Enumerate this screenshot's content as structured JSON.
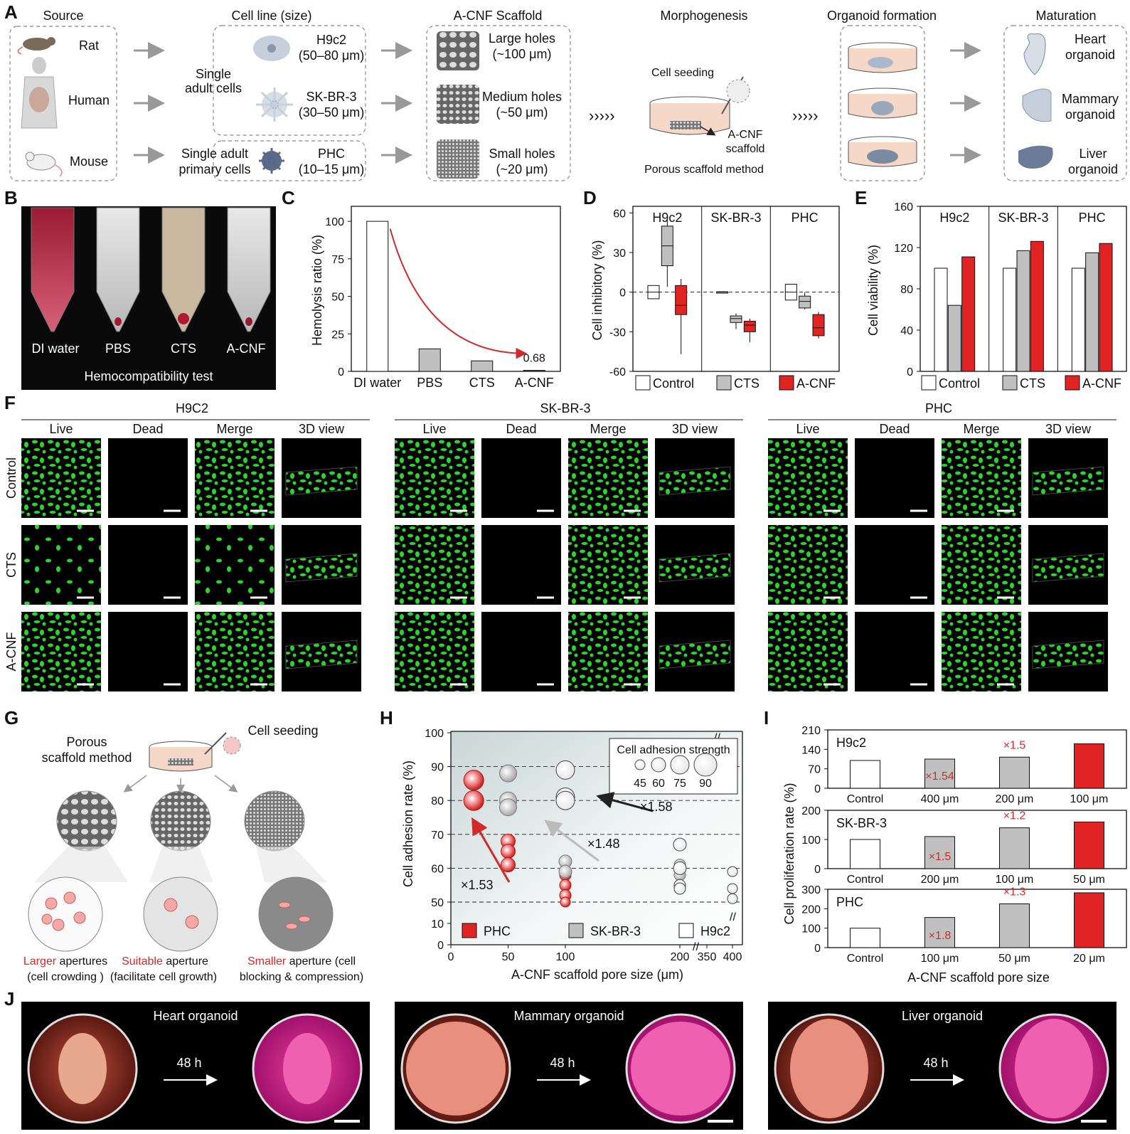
{
  "panel_letters": [
    "A",
    "B",
    "C",
    "D",
    "E",
    "F",
    "G",
    "H",
    "I",
    "J"
  ],
  "panelA": {
    "headers": [
      "Source",
      "Cell line (size)",
      "A-CNF Scaffold",
      "Morphogenesis",
      "Organoid formation",
      "Maturation"
    ],
    "sources": [
      "Rat",
      "Human",
      "Mouse"
    ],
    "single_adult_cells": "Single\nadult cells",
    "single_adult_primary": "Single adult\nprimary cells",
    "cells": [
      {
        "name": "H9c2",
        "size": "(50–80 μm)"
      },
      {
        "name": "SK-BR-3",
        "size": "(30–50 μm)"
      },
      {
        "name": "PHC",
        "size": "(10–15 μm)"
      }
    ],
    "scaffolds": [
      {
        "name": "Large holes",
        "size": "(~100 μm)"
      },
      {
        "name": "Medium holes",
        "size": "(~50 μm)"
      },
      {
        "name": "Small holes",
        "size": "(~20 μm)"
      }
    ],
    "cell_seeding": "Cell seeding",
    "acnf_scaffold": "A-CNF\nscaffold",
    "method": "Porous scaffold method",
    "organoids": [
      {
        "name": "Heart\norganoid"
      },
      {
        "name": "Mammary\norganoid"
      },
      {
        "name": "Liver\norganoid"
      }
    ]
  },
  "panelB": {
    "tubes": [
      "DI water",
      "PBS",
      "CTS",
      "A-CNF"
    ],
    "caption": "Hemocompatibility test"
  },
  "legend_groups": [
    "Control",
    "CTS",
    "A-CNF"
  ],
  "colors": {
    "control": "#ffffff",
    "cts": "#c0c0c0",
    "acnf": "#e02424",
    "arrow_red": "#d12a2a",
    "green": "#2bd62b"
  },
  "panelF": {
    "groups": [
      "H9C2",
      "SK-BR-3",
      "PHC"
    ],
    "columns": [
      "Live",
      "Dead",
      "Merge",
      "3D view"
    ],
    "rows": [
      "Control",
      "CTS",
      "A-CNF"
    ]
  },
  "panelG": {
    "method": "Porous\nscaffold method",
    "seeding": "Cell seeding",
    "captions": [
      {
        "red": "Larger",
        "rest": " apertures",
        "line2": "(cell crowding )"
      },
      {
        "red": "Suitable",
        "rest": " aperture",
        "line2": "(facilitate cell growth)"
      },
      {
        "red": "Smaller",
        "rest": " aperture (cell",
        "line2": "blocking & compression)"
      }
    ]
  },
  "panelH_notes": {
    "legend_title": "Cell adhesion strength",
    "legend_sizes": [
      "45",
      "60",
      "75",
      "90"
    ],
    "fold_labels": [
      "×1.53",
      "×1.48",
      "×1.58"
    ]
  },
  "panelJ": {
    "titles": [
      "Heart organoid",
      "Mammary organoid",
      "Liver organoid"
    ],
    "time": "48 h"
  },
  "chart_data": [
    {
      "panel": "C",
      "type": "bar",
      "categories": [
        "DI water",
        "PBS",
        "CTS",
        "A-CNF"
      ],
      "values": [
        100,
        15,
        7,
        0.68
      ],
      "ylabel": "Hemolysis ratio (%)",
      "ylim": [
        0,
        110
      ],
      "yticks": [
        0,
        25,
        50,
        75,
        100
      ],
      "annotation": "0.68"
    },
    {
      "panel": "D",
      "type": "box",
      "ylabel": "Cell inhibitory (%)",
      "ylim": [
        -60,
        65
      ],
      "yticks": [
        -60,
        -30,
        0,
        30,
        60
      ],
      "groups": [
        "H9c2",
        "SK-BR-3",
        "PHC"
      ],
      "series": [
        {
          "name": "Control",
          "boxes": [
            [
              -5,
              -5,
              0,
              5,
              5
            ],
            [
              -0.5,
              -0.3,
              0,
              0.3,
              0.5
            ],
            [
              -6,
              -6,
              0,
              6,
              6
            ]
          ]
        },
        {
          "name": "CTS",
          "boxes": [
            [
              4,
              20,
              35,
              50,
              55
            ],
            [
              -28,
              -23,
              -20,
              -18,
              -16
            ],
            [
              -13,
              -12,
              -7,
              -3,
              0
            ]
          ]
        },
        {
          "name": "A-CNF",
          "boxes": [
            [
              -47,
              -17,
              -10,
              5,
              10
            ],
            [
              -38,
              -30,
              -25,
              -22,
              -20
            ],
            [
              -35,
              -33,
              -27,
              -17,
              -15
            ]
          ]
        }
      ]
    },
    {
      "panel": "E",
      "type": "bar",
      "ylabel": "Cell viability (%)",
      "ylim": [
        0,
        160
      ],
      "yticks": [
        0,
        40,
        80,
        120,
        160
      ],
      "groups": [
        "H9c2",
        "SK-BR-3",
        "PHC"
      ],
      "series": [
        {
          "name": "Control",
          "values": [
            100,
            100,
            100
          ]
        },
        {
          "name": "CTS",
          "values": [
            64,
            117,
            115
          ]
        },
        {
          "name": "A-CNF",
          "values": [
            111,
            126,
            124
          ]
        }
      ]
    },
    {
      "panel": "H",
      "type": "scatter",
      "xlabel": "A-CNF scaffold pore size (μm)",
      "ylabel": "Cell adhesion rate (%)",
      "xticks": [
        "0",
        "50",
        "100",
        "200",
        "350",
        "400"
      ],
      "yticks": [
        "0",
        "10",
        "50",
        "60",
        "70",
        "80",
        "90",
        "100"
      ],
      "series": [
        {
          "name": "PHC",
          "points": [
            [
              20,
              86,
              80
            ],
            [
              20,
              80,
              80
            ],
            [
              50,
              68,
              60
            ],
            [
              50,
              65,
              60
            ],
            [
              50,
              61,
              60
            ],
            [
              100,
              58,
              50
            ],
            [
              100,
              55,
              50
            ],
            [
              100,
              52,
              50
            ],
            [
              100,
              50,
              45
            ]
          ]
        },
        {
          "name": "SK-BR-3",
          "points": [
            [
              50,
              88,
              70
            ],
            [
              50,
              80,
              70
            ],
            [
              50,
              78,
              70
            ],
            [
              100,
              62,
              55
            ],
            [
              100,
              59,
              55
            ],
            [
              200,
              61,
              50
            ],
            [
              200,
              58,
              50
            ],
            [
              200,
              55,
              50
            ]
          ]
        },
        {
          "name": "H9c2",
          "points": [
            [
              100,
              89,
              75
            ],
            [
              100,
              81,
              75
            ],
            [
              100,
              80,
              75
            ],
            [
              200,
              67,
              55
            ],
            [
              200,
              60,
              55
            ],
            [
              200,
              55,
              50
            ],
            [
              200,
              54,
              50
            ],
            [
              400,
              59,
              45
            ],
            [
              400,
              54,
              45
            ],
            [
              400,
              51,
              45
            ]
          ]
        }
      ]
    },
    {
      "panel": "I",
      "type": "bar",
      "xlabel": "A-CNF scaffold pore size",
      "ylabel": "Cell proliferation rate (%)",
      "subplots": [
        {
          "name": "H9c2",
          "categories": [
            "Control",
            "400 μm",
            "200 μm",
            "100 μm"
          ],
          "values": [
            100,
            105,
            112,
            160
          ],
          "yticks": [
            0,
            70,
            140,
            210
          ],
          "ylim": [
            0,
            210
          ],
          "fold": [
            "",
            "×1.54",
            "×1.5",
            ""
          ]
        },
        {
          "name": "SK-BR-3",
          "categories": [
            "Control",
            "200 μm",
            "100 μm",
            "50 μm"
          ],
          "values": [
            100,
            110,
            140,
            160
          ],
          "yticks": [
            0,
            100,
            200
          ],
          "ylim": [
            0,
            200
          ],
          "fold": [
            "",
            "×1.5",
            "×1.2",
            ""
          ]
        },
        {
          "name": "PHC",
          "categories": [
            "Control",
            "100 μm",
            "50 μm",
            "20 μm"
          ],
          "values": [
            100,
            155,
            225,
            282
          ],
          "yticks": [
            0,
            100,
            200,
            300
          ],
          "ylim": [
            0,
            300
          ],
          "fold": [
            "",
            "×1.8",
            "×1.3",
            ""
          ]
        }
      ]
    }
  ]
}
